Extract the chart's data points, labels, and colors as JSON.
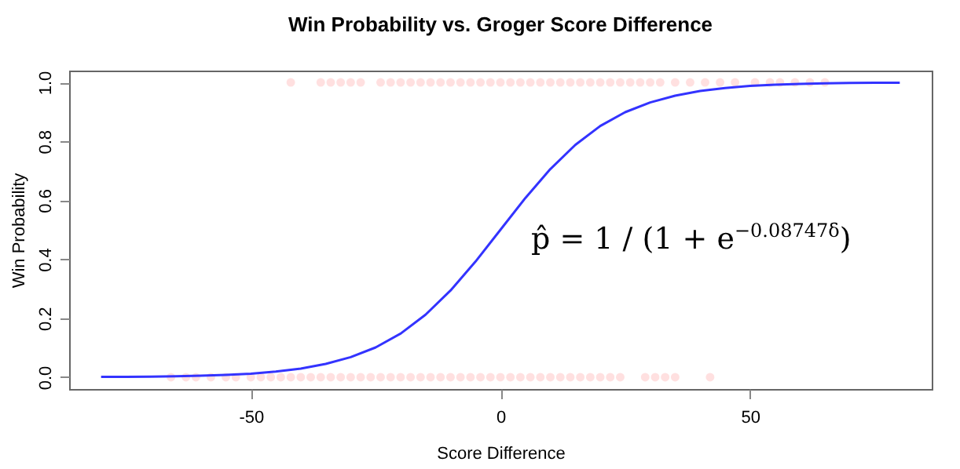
{
  "chart_data": {
    "type": "line",
    "title": "Win Probability vs. Groger Score Difference",
    "xlabel": "Score Difference",
    "ylabel": "Win Probability",
    "xlim": [
      -86.4,
      86.4
    ],
    "ylim": [
      -0.04,
      1.04
    ],
    "xticks": [
      -50,
      0,
      50
    ],
    "yticks": [
      {
        "value": 0,
        "label": "0.0"
      },
      {
        "value": 0.2,
        "label": "0.2"
      },
      {
        "value": 0.4,
        "label": "0.4"
      },
      {
        "value": 0.6,
        "label": "0.6"
      },
      {
        "value": 0.8,
        "label": "0.8"
      },
      {
        "value": 1,
        "label": "1.0"
      }
    ],
    "grid": false,
    "annotations": [
      "p̂ = 1 / (1 + e$^{−0.08747δ}$)"
    ],
    "series": [
      {
        "type": "scatter",
        "marker": "circle",
        "color": "#ff0000",
        "x": [
          -42,
          -36,
          -34,
          -32,
          -30,
          -28,
          -24,
          -22,
          -20,
          -18,
          -16,
          -14,
          -12,
          -10,
          -8,
          -6,
          -4,
          -2,
          0,
          2,
          4,
          6,
          8,
          10,
          12,
          14,
          16,
          18,
          20,
          22,
          24,
          26,
          28,
          30,
          32,
          35,
          38,
          41,
          44,
          47,
          51,
          54,
          56,
          59,
          62,
          65,
          -66,
          -63,
          -61,
          -58,
          -55,
          -53,
          -50,
          -48,
          -46,
          -44,
          -42,
          -40,
          -38,
          -36,
          -34,
          -32,
          -30,
          -28,
          -26,
          -24,
          -22,
          -20,
          -18,
          -16,
          -14,
          -12,
          -10,
          -8,
          -6,
          -4,
          -2,
          0,
          2,
          4,
          6,
          8,
          10,
          12,
          14,
          16,
          18,
          20,
          22,
          24,
          29,
          31,
          33,
          35,
          42
        ],
        "values": [
          1,
          1,
          1,
          1,
          1,
          1,
          1,
          1,
          1,
          1,
          1,
          1,
          1,
          1,
          1,
          1,
          1,
          1,
          1,
          1,
          1,
          1,
          1,
          1,
          1,
          1,
          1,
          1,
          1,
          1,
          1,
          1,
          1,
          1,
          1,
          1,
          1,
          1,
          1,
          1,
          1,
          1,
          1,
          1,
          1,
          1,
          0,
          0,
          0,
          0,
          0,
          0,
          0,
          0,
          0,
          0,
          0,
          0,
          0,
          0,
          0,
          0,
          0,
          0,
          0,
          0,
          0,
          0,
          0,
          0,
          0,
          0,
          0,
          0,
          0,
          0,
          0,
          0,
          0,
          0,
          0,
          0,
          0,
          0,
          0,
          0,
          0,
          0,
          0,
          0,
          0,
          0,
          0,
          0,
          0
        ]
      },
      {
        "marker": "none",
        "line_style": "solid",
        "color": "#3333ff",
        "x": [
          -80,
          -75,
          -70,
          -65,
          -60,
          -55,
          -50,
          -45,
          -40,
          -35,
          -30,
          -25,
          -20,
          -15,
          -10,
          -5,
          0,
          5,
          10,
          15,
          20,
          25,
          30,
          35,
          40,
          45,
          50,
          55,
          60,
          65,
          70,
          75,
          80
        ],
        "values": [
          0.001,
          0.001,
          0.002,
          0.003,
          0.005,
          0.008,
          0.012,
          0.019,
          0.029,
          0.045,
          0.068,
          0.101,
          0.148,
          0.212,
          0.294,
          0.392,
          0.5,
          0.608,
          0.706,
          0.788,
          0.852,
          0.899,
          0.932,
          0.955,
          0.971,
          0.981,
          0.988,
          0.992,
          0.995,
          0.997,
          0.998,
          0.999,
          0.999
        ]
      }
    ]
  }
}
